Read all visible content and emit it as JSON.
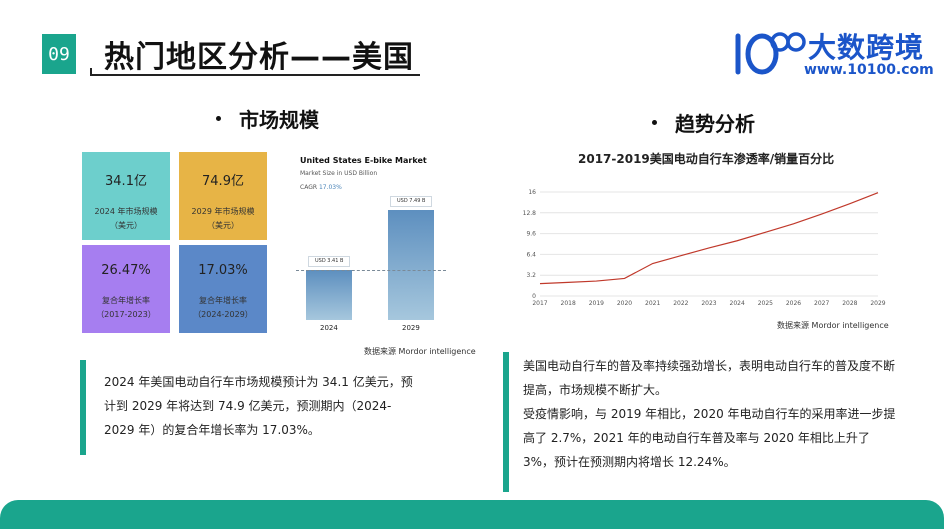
{
  "header": {
    "slide_number": "09",
    "title": "热门地区分析——美国"
  },
  "logo": {
    "name": "大数跨境",
    "url": "www.10100.com",
    "mark": "10100",
    "color": "#1b55c9"
  },
  "left_section": {
    "heading": "市场规模",
    "tiles": [
      {
        "value": "34.1亿",
        "label": "2024 年市场规模（美元）",
        "color": "#6dcfcc"
      },
      {
        "value": "74.9亿",
        "label": "2029 年市场规模（美元）",
        "color": "#e7b446"
      },
      {
        "value": "26.47%",
        "label": "复合年增长率（2017-2023）",
        "color": "#a67ef0"
      },
      {
        "value": "17.03%",
        "label": "复合年增长率（2024-2029）",
        "color": "#5b88c8"
      }
    ],
    "market_chart": {
      "title": "United States E-bike Market",
      "subtitle": "Market Size in USD Billion",
      "cagr_label": "CAGR",
      "cagr_value": "17.03%",
      "source": "数据来源 Mordor intelligence"
    },
    "summary": "2024 年美国电动自行车市场规模预计为 34.1 亿美元，预计到 2029 年将达到 74.9 亿美元，预测期内（2024-2029 年）的复合年增长率为 17.03%。"
  },
  "right_section": {
    "heading": "趋势分析",
    "chart_title": "2017-2019美国电动自行车渗透率/销量百分比",
    "source": "数据来源 Mordor intelligence",
    "summary_p1": "美国电动自行车的普及率持续强劲增长，表明电动自行车的普及度不断提高，市场规模不断扩大。",
    "summary_p2": "受疫情影响，与 2019 年相比，2020 年电动自行车的采用率进一步提高了 2.7%，2021 年的电动自行车普及率与 2020 年相比上升了 3%，预计在预测期内将增长 12.24%。"
  },
  "chart_data": [
    {
      "type": "bar",
      "title": "United States E-bike Market",
      "subtitle": "Market Size in USD Billion",
      "categories": [
        "2024",
        "2029"
      ],
      "values": [
        3.41,
        7.49
      ],
      "value_labels": [
        "USD 3.41 B",
        "USD 7.49 B"
      ],
      "ylim": [
        0,
        8
      ],
      "bar_color": "#6d9cc8",
      "grid": false
    },
    {
      "type": "line",
      "title": "2017-2019美国电动自行车渗透率/销量百分比",
      "x": [
        "2017",
        "2018",
        "2019",
        "2020",
        "2021",
        "2022",
        "2023",
        "2024",
        "2025",
        "2026",
        "2027",
        "2028",
        "2029"
      ],
      "values": [
        1.9,
        2.1,
        2.3,
        2.7,
        5.0,
        6.2,
        7.4,
        8.5,
        9.8,
        11.1,
        12.6,
        14.2,
        15.9
      ],
      "yticks": [
        "0",
        "3.2",
        "6.4",
        "9.6",
        "12.8",
        "16"
      ],
      "ylim": [
        0,
        16
      ],
      "line_color": "#c0392b",
      "grid": true
    }
  ]
}
